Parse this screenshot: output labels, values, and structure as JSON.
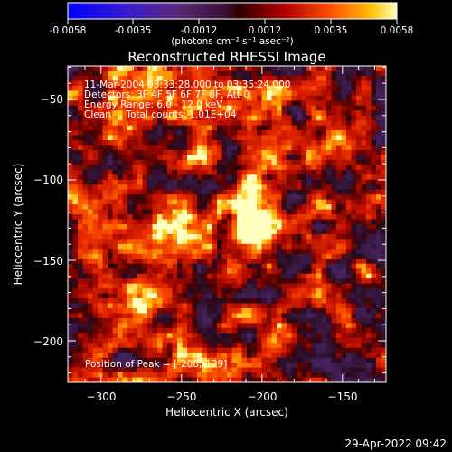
{
  "colorbar": {
    "tick_labels": [
      "-0.0058",
      "-0.0035",
      "-0.0012",
      "0.0012",
      "0.0035",
      "0.0058"
    ],
    "unit_label": "(photons cm⁻² s⁻¹ asec⁻²)",
    "range": [
      -0.0058,
      0.0058
    ]
  },
  "title": "Reconstructed RHESSI Image",
  "info_lines": [
    "11-Mar-2004 03:33:28.000 to 03:35:24.000",
    "Detectors: 3F 4F 5F 6F 7F 8F, Att 0",
    "Energy Range: 6.0 - 12.0 keV",
    "Clean     Total counts: 1.01E+04"
  ],
  "peak_label": "Position of Peak = [-208,-129]",
  "x_axis": {
    "label": "Heliocentric X (arcsec)",
    "tick_labels": [
      "−300",
      "−250",
      "−200",
      "−150"
    ],
    "range": [
      -320,
      -125
    ]
  },
  "y_axis": {
    "label": "Heliocentric Y (arcsec)",
    "tick_labels": [
      "−50",
      "−100",
      "−150",
      "−200"
    ],
    "range": [
      -222,
      -25
    ]
  },
  "timestamp": "29-Apr-2022 09:42"
}
